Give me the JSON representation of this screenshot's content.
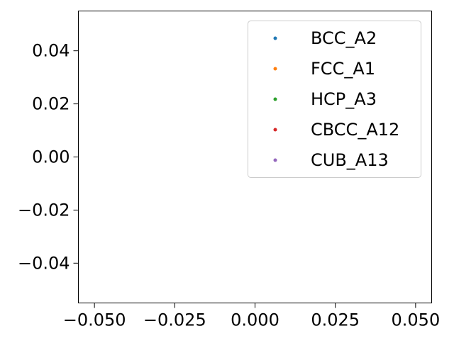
{
  "chart_data": {
    "type": "scatter",
    "title": "",
    "xlabel": "",
    "ylabel": "",
    "xlim": [
      -0.055,
      0.055
    ],
    "ylim": [
      -0.055,
      0.055
    ],
    "x_ticks": [
      -0.05,
      -0.025,
      0.0,
      0.025,
      0.05
    ],
    "x_tick_labels": [
      "−0.050",
      "−0.025",
      "0.000",
      "0.025",
      "0.050"
    ],
    "y_ticks": [
      0.04,
      0.02,
      0.0,
      -0.02,
      -0.04
    ],
    "y_tick_labels": [
      "0.04",
      "0.02",
      "0.00",
      "−0.02",
      "−0.04"
    ],
    "grid": false,
    "legend_position": "upper right",
    "series": [
      {
        "name": "BCC_A2",
        "color": "#1f77b4",
        "x": [],
        "y": []
      },
      {
        "name": "FCC_A1",
        "color": "#ff7f0e",
        "x": [],
        "y": []
      },
      {
        "name": "HCP_A3",
        "color": "#2ca02c",
        "x": [],
        "y": []
      },
      {
        "name": "CBCC_A12",
        "color": "#d62728",
        "x": [],
        "y": []
      },
      {
        "name": "CUB_A13",
        "color": "#9467bd",
        "x": [],
        "y": []
      }
    ]
  }
}
